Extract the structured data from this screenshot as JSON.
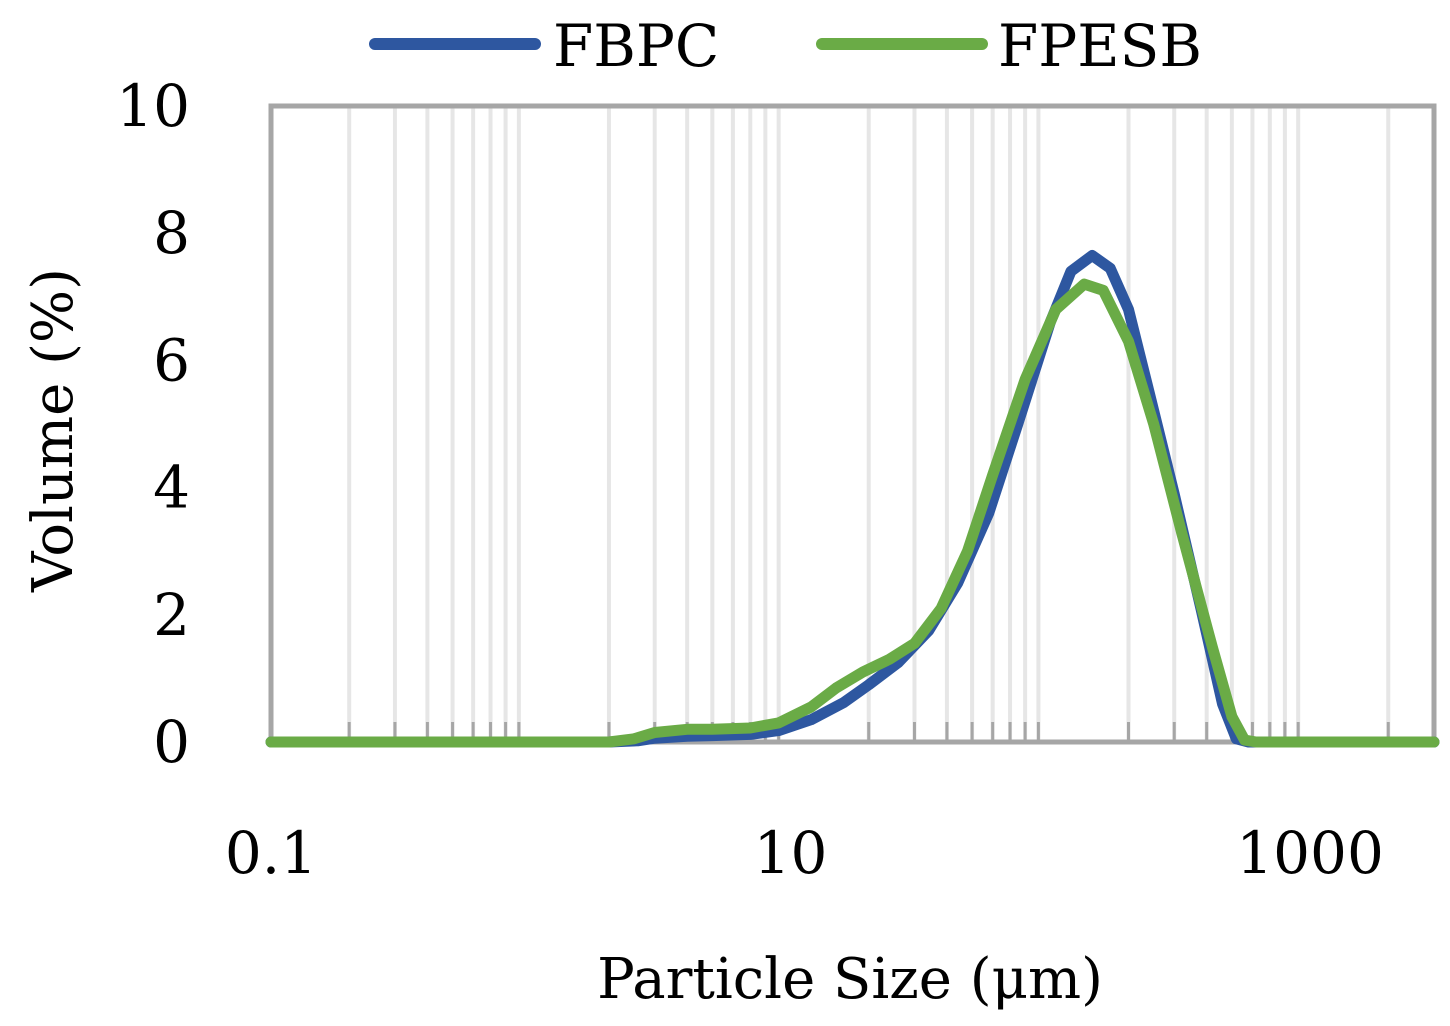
{
  "chart_data": {
    "type": "line",
    "title": "",
    "xlabel": "Particle Size (μm)",
    "ylabel": "Volume (%)",
    "x_scale": "log",
    "xlim": [
      0.1,
      3000
    ],
    "ylim": [
      0,
      10
    ],
    "x_ticks": [
      0.1,
      10,
      1000
    ],
    "x_tick_labels": [
      "0.1",
      "10",
      "1000"
    ],
    "y_ticks": [
      0,
      2,
      4,
      6,
      8,
      10
    ],
    "y_tick_labels": [
      "0",
      "2",
      "4",
      "6",
      "8",
      "10"
    ],
    "grid": "vertical",
    "legend_position": "top",
    "colors": {
      "FBPC": "#2e57a0",
      "FPESB": "#6aab46",
      "grid": "#e6e6e6",
      "axis": "#a6a6a6"
    },
    "series": [
      {
        "name": "FBPC",
        "points": [
          [
            0.1,
            0
          ],
          [
            2.0,
            0
          ],
          [
            2.6,
            0.02
          ],
          [
            3.0,
            0.06
          ],
          [
            4.0,
            0.09
          ],
          [
            5.0,
            0.1
          ],
          [
            7.0,
            0.12
          ],
          [
            9.0,
            0.18
          ],
          [
            12.0,
            0.35
          ],
          [
            16.0,
            0.62
          ],
          [
            20.0,
            0.9
          ],
          [
            26.0,
            1.25
          ],
          [
            34.0,
            1.75
          ],
          [
            44.0,
            2.5
          ],
          [
            58.0,
            3.6
          ],
          [
            75.0,
            5.0
          ],
          [
            100.0,
            6.6
          ],
          [
            120.0,
            7.4
          ],
          [
            145.0,
            7.65
          ],
          [
            170.0,
            7.45
          ],
          [
            200.0,
            6.8
          ],
          [
            240.0,
            5.5
          ],
          [
            300.0,
            3.9
          ],
          [
            380.0,
            2.1
          ],
          [
            460.0,
            0.6
          ],
          [
            520.0,
            0.05
          ],
          [
            580.0,
            0
          ],
          [
            3000.0,
            0
          ]
        ]
      },
      {
        "name": "FPESB",
        "points": [
          [
            0.1,
            0
          ],
          [
            2.0,
            0
          ],
          [
            2.5,
            0.05
          ],
          [
            3.0,
            0.15
          ],
          [
            4.0,
            0.2
          ],
          [
            5.0,
            0.2
          ],
          [
            7.0,
            0.22
          ],
          [
            9.0,
            0.3
          ],
          [
            12.0,
            0.55
          ],
          [
            15.0,
            0.85
          ],
          [
            19.0,
            1.1
          ],
          [
            24.0,
            1.3
          ],
          [
            30.0,
            1.55
          ],
          [
            38.0,
            2.1
          ],
          [
            48.0,
            3.0
          ],
          [
            60.0,
            4.2
          ],
          [
            80.0,
            5.7
          ],
          [
            105.0,
            6.8
          ],
          [
            135.0,
            7.2
          ],
          [
            160.0,
            7.1
          ],
          [
            200.0,
            6.3
          ],
          [
            250.0,
            5.0
          ],
          [
            320.0,
            3.3
          ],
          [
            420.0,
            1.5
          ],
          [
            500.0,
            0.4
          ],
          [
            560.0,
            0.03
          ],
          [
            620.0,
            0
          ],
          [
            3000.0,
            0
          ]
        ]
      }
    ]
  }
}
